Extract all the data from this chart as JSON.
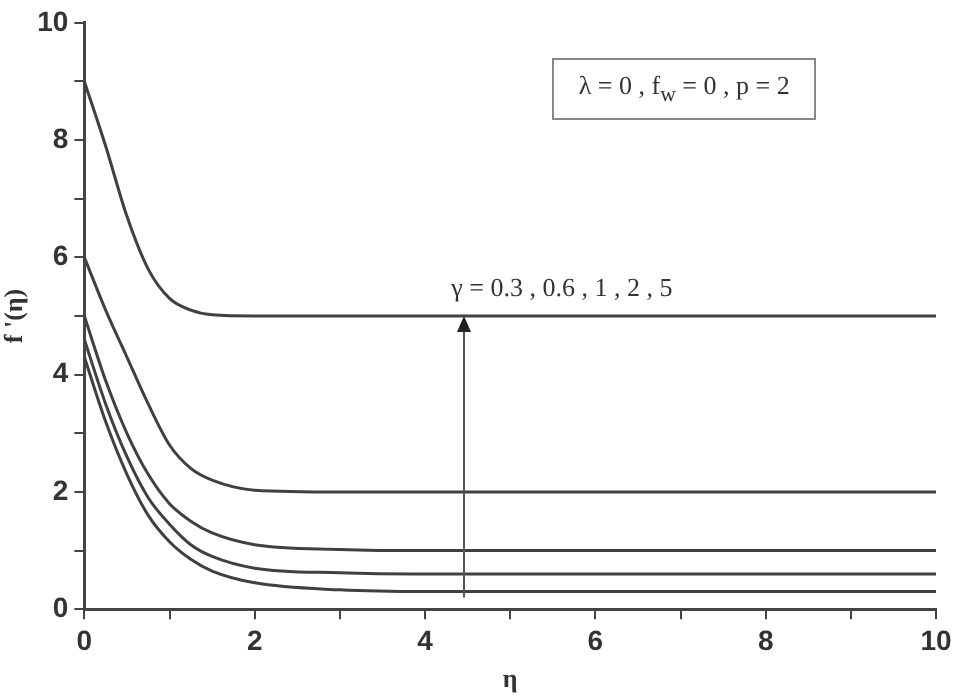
{
  "chart_data": {
    "type": "line",
    "xlabel": "η",
    "ylabel": "f '(η)",
    "x": [
      0,
      0.25,
      0.5,
      0.75,
      1,
      1.25,
      1.5,
      2,
      3,
      4,
      6,
      8,
      10
    ],
    "series": [
      {
        "color": "#404040",
        "values": [
          9,
          7.9,
          6.7,
          5.8,
          5.3,
          5.1,
          5.02,
          5,
          5,
          5,
          5,
          5,
          5
        ]
      },
      {
        "color": "#404040",
        "values": [
          6,
          5.1,
          4.3,
          3.5,
          2.8,
          2.4,
          2.2,
          2.03,
          2,
          2,
          2,
          2,
          2
        ]
      },
      {
        "color": "#404040",
        "values": [
          5,
          3.9,
          3,
          2.3,
          1.8,
          1.5,
          1.3,
          1.1,
          1.02,
          1,
          1,
          1,
          1
        ]
      },
      {
        "color": "#404040",
        "values": [
          4.6,
          3.5,
          2.6,
          1.9,
          1.45,
          1.1,
          0.9,
          0.7,
          0.62,
          0.6,
          0.6,
          0.6,
          0.6
        ]
      },
      {
        "color": "#404040",
        "values": [
          4.3,
          3.2,
          2.3,
          1.6,
          1.15,
          0.85,
          0.65,
          0.45,
          0.33,
          0.3,
          0.3,
          0.3,
          0.3
        ]
      }
    ],
    "xlim": [
      0,
      10
    ],
    "xticks": [
      0,
      {
        "value": 1,
        "label": null
      },
      2,
      {
        "value": 3,
        "label": null
      },
      4,
      {
        "value": 5,
        "label": null
      },
      6,
      {
        "value": 7,
        "label": null
      },
      8,
      {
        "value": 9,
        "label": null
      },
      10
    ],
    "ylim": [
      0,
      10
    ],
    "yticks": [
      0,
      {
        "value": 1,
        "label": null
      },
      2,
      {
        "value": 3,
        "label": null
      },
      4,
      {
        "value": 5,
        "label": null
      },
      6,
      {
        "value": 7,
        "label": null
      },
      8,
      {
        "value": 9,
        "label": null
      },
      10
    ],
    "annotations": [
      "λ = 0 , f$_{w}$ = 0 , p = 2",
      {
        "text": "γ = 0.3 , 0.6 , 1 , 2 , 5",
        "x": 4.45,
        "y": 5
      }
    ],
    "grid": false,
    "legend": false,
    "marker": "none",
    "line_style": "solid"
  }
}
